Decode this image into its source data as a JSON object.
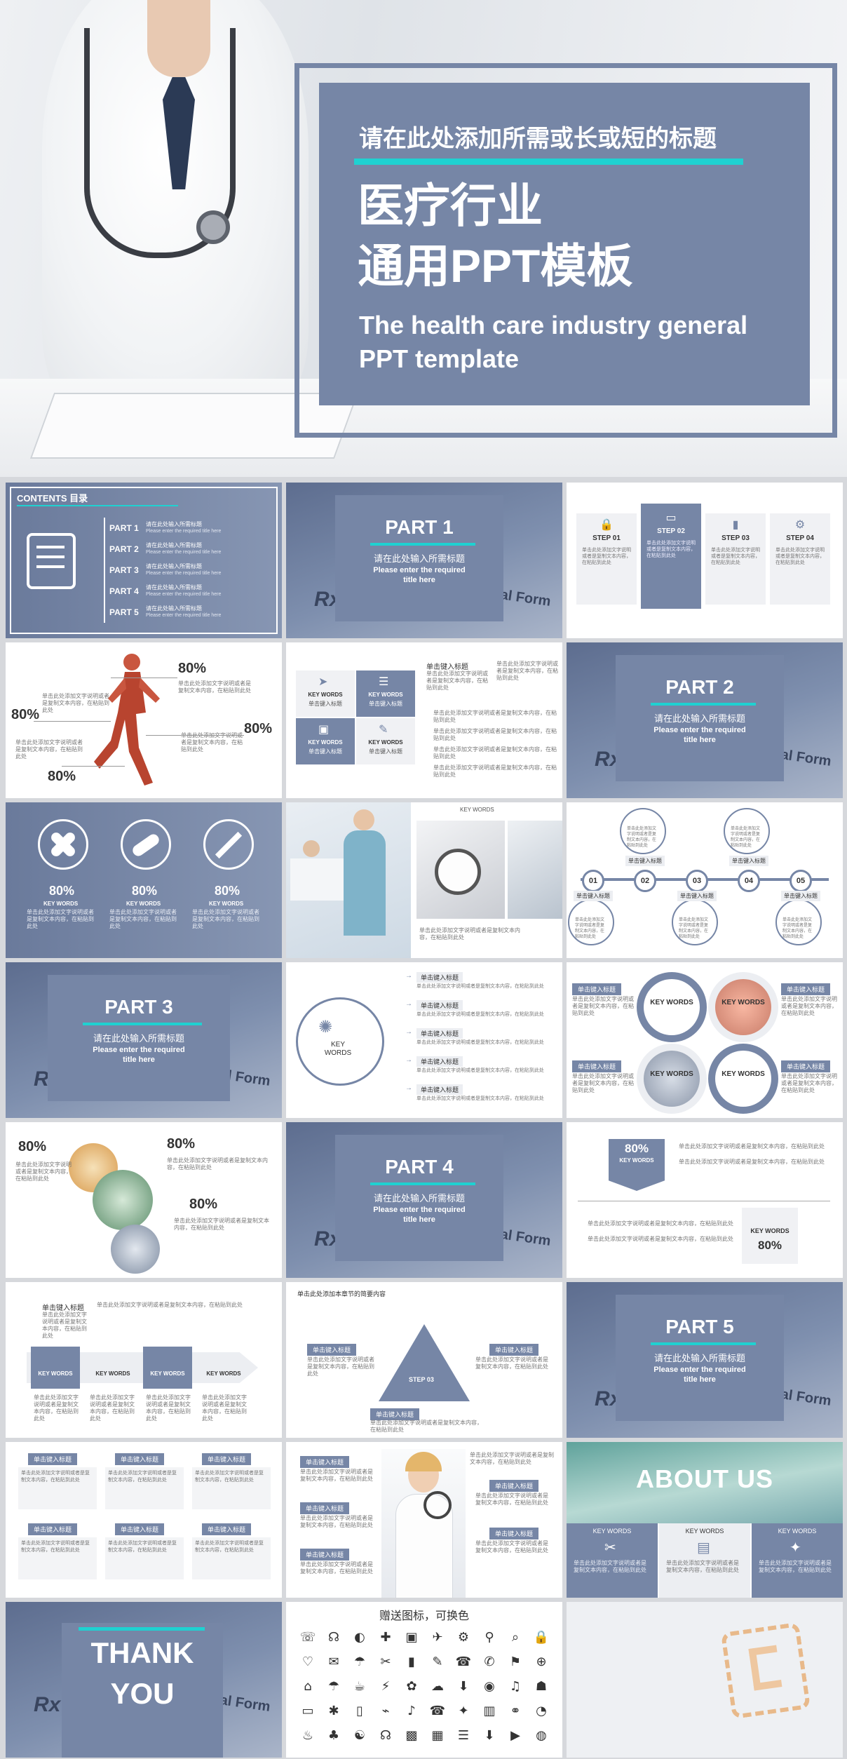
{
  "hero": {
    "subtitle": "请在此处添加所需或长或短的标题",
    "title_line1": "医疗行业",
    "title_line2": "通用PPT模板",
    "english_line1": "The health care industry general",
    "english_line2": "PPT template"
  },
  "contents": {
    "heading": "CONTENTS 目录",
    "items": [
      {
        "part": "PART 1",
        "cn": "请在此处输入所需标题",
        "en": "Please enter the required title here"
      },
      {
        "part": "PART 2",
        "cn": "请在此处输入所需标题",
        "en": "Please enter the required title here"
      },
      {
        "part": "PART 3",
        "cn": "请在此处输入所需标题",
        "en": "Please enter the required title here"
      },
      {
        "part": "PART 4",
        "cn": "请在此处输入所需标题",
        "en": "Please enter the required title here"
      },
      {
        "part": "PART 5",
        "cn": "请在此处输入所需标题",
        "en": "Please enter the required title here"
      }
    ]
  },
  "part_slide": {
    "sub": "请在此处输入所需标题",
    "en1": "Please enter the required",
    "en2": "title here",
    "rx": "Rx",
    "mf": "Medical Form"
  },
  "parts": [
    "PART 1",
    "PART 2",
    "PART 3",
    "PART 4",
    "PART 5"
  ],
  "steps": [
    "STEP 01",
    "STEP 02",
    "STEP 03",
    "STEP 04"
  ],
  "filler": "单击此处添加文字说明或者是复制文本内容，在粘贴到此处",
  "filler2": "单击此处添加文字阐述内容",
  "pct": "80%",
  "key_words": "KEY WORDS",
  "input_title": "单击键入标题",
  "numbers": [
    "01",
    "02",
    "03",
    "04",
    "05"
  ],
  "step_tri": [
    "STEP 01",
    "STEP 02",
    "STEP 03"
  ],
  "step_tri_head": "单击此处添加本章节的简要内容",
  "about": "ABOUT US",
  "thank": [
    "THANK",
    "YOU"
  ],
  "icons_title": "赠送图标，可换色",
  "colors": {
    "brand": "#7686a6",
    "accent": "#1fd1d1"
  }
}
